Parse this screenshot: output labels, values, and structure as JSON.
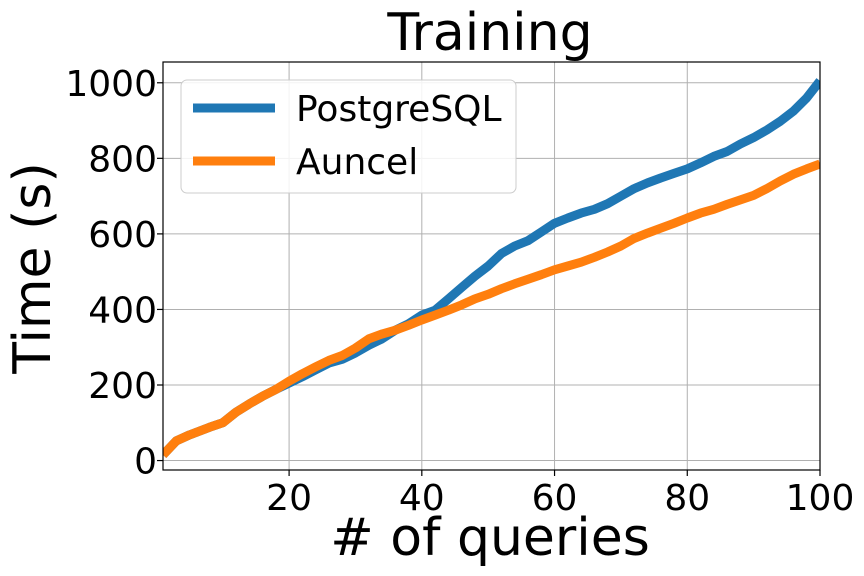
{
  "chart_data": {
    "type": "line",
    "title": "Training",
    "xlabel": "# of queries",
    "ylabel": "Time (s)",
    "xlim": [
      1,
      100
    ],
    "ylim": [
      -25,
      1055
    ],
    "xticks": [
      20,
      40,
      60,
      80,
      100
    ],
    "yticks": [
      0,
      200,
      400,
      600,
      800,
      1000
    ],
    "grid": true,
    "legend_position": "upper-left",
    "series": [
      {
        "name": "PostgreSQL",
        "color": "#1f77b4",
        "x": [
          1,
          3,
          5,
          8,
          10,
          12,
          14,
          16,
          18,
          20,
          22,
          24,
          26,
          28,
          30,
          32,
          34,
          36,
          38,
          40,
          42,
          44,
          46,
          48,
          50,
          52,
          54,
          56,
          58,
          60,
          62,
          64,
          66,
          68,
          70,
          72,
          74,
          76,
          78,
          80,
          82,
          84,
          86,
          88,
          90,
          92,
          94,
          96,
          98,
          100
        ],
        "y": [
          15,
          52,
          68,
          88,
          100,
          128,
          150,
          170,
          188,
          205,
          222,
          240,
          258,
          268,
          285,
          305,
          322,
          345,
          362,
          385,
          398,
          428,
          458,
          488,
          515,
          548,
          568,
          582,
          605,
          628,
          642,
          655,
          665,
          680,
          700,
          720,
          735,
          748,
          760,
          772,
          788,
          805,
          818,
          838,
          855,
          875,
          898,
          925,
          960,
          1005
        ]
      },
      {
        "name": "Auncel",
        "color": "#ff7f0e",
        "x": [
          1,
          3,
          5,
          8,
          10,
          12,
          14,
          16,
          18,
          20,
          22,
          24,
          26,
          28,
          30,
          32,
          34,
          36,
          38,
          40,
          42,
          44,
          46,
          48,
          50,
          52,
          54,
          56,
          58,
          60,
          62,
          64,
          66,
          68,
          70,
          72,
          74,
          76,
          78,
          80,
          82,
          84,
          86,
          88,
          90,
          92,
          94,
          96,
          98,
          100
        ],
        "y": [
          15,
          52,
          68,
          88,
          100,
          128,
          150,
          170,
          188,
          210,
          230,
          248,
          265,
          278,
          298,
          322,
          335,
          345,
          358,
          372,
          385,
          398,
          412,
          428,
          440,
          455,
          468,
          480,
          492,
          505,
          515,
          525,
          538,
          552,
          568,
          588,
          602,
          615,
          628,
          642,
          655,
          665,
          678,
          690,
          702,
          720,
          740,
          758,
          772,
          785
        ]
      }
    ]
  }
}
